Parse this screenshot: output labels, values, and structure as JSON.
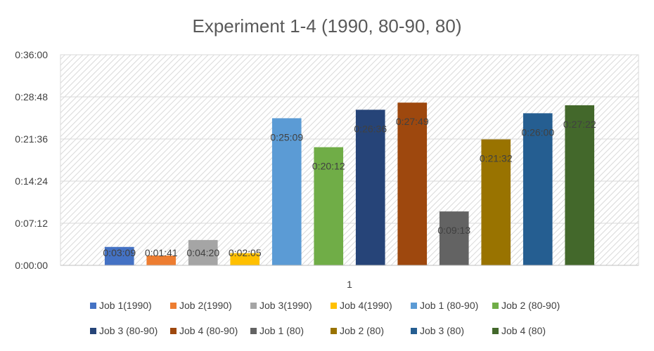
{
  "chart_data": {
    "type": "bar",
    "title": "Experiment 1-4 (1990, 80-90, 80)",
    "xlabel": "",
    "ylabel": "",
    "categories": [
      "1"
    ],
    "ylim_seconds": [
      0,
      2160
    ],
    "y_ticks": [
      "0:00:00",
      "0:07:12",
      "0:14:24",
      "0:21:36",
      "0:28:48",
      "0:36:00"
    ],
    "grid": true,
    "legend_position": "bottom",
    "series": [
      {
        "name": "Job 1(1990)",
        "value_seconds": 189,
        "label": "0:03:09",
        "color": "#4472C4"
      },
      {
        "name": "Job 2(1990)",
        "value_seconds": 101,
        "label": "0:01:41",
        "color": "#ED7D31"
      },
      {
        "name": "Job 3(1990)",
        "value_seconds": 260,
        "label": "0:04:20",
        "color": "#A5A5A5"
      },
      {
        "name": "Job 4(1990)",
        "value_seconds": 125,
        "label": "0:02:05",
        "color": "#FFC000"
      },
      {
        "name": "Job 1 (80-90)",
        "value_seconds": 1509,
        "label": "0:25:09",
        "color": "#5B9BD5"
      },
      {
        "name": "Job 2 (80-90)",
        "value_seconds": 1212,
        "label": "0:20:12",
        "color": "#70AD47"
      },
      {
        "name": "Job 3 (80-90)",
        "value_seconds": 1596,
        "label": "0:26:36",
        "color": "#264478"
      },
      {
        "name": "Job 4 (80-90)",
        "value_seconds": 1669,
        "label": "0:27:49",
        "color": "#9E480E"
      },
      {
        "name": "Job 1 (80)",
        "value_seconds": 553,
        "label": "0:09:13",
        "color": "#636363"
      },
      {
        "name": "Job 2 (80)",
        "value_seconds": 1292,
        "label": "0:21:32",
        "color": "#997300"
      },
      {
        "name": "Job 3 (80)",
        "value_seconds": 1560,
        "label": "0:26:00",
        "color": "#255E91"
      },
      {
        "name": "Job 4 (80)",
        "value_seconds": 1642,
        "label": "0:27:22",
        "color": "#43682B"
      }
    ]
  }
}
